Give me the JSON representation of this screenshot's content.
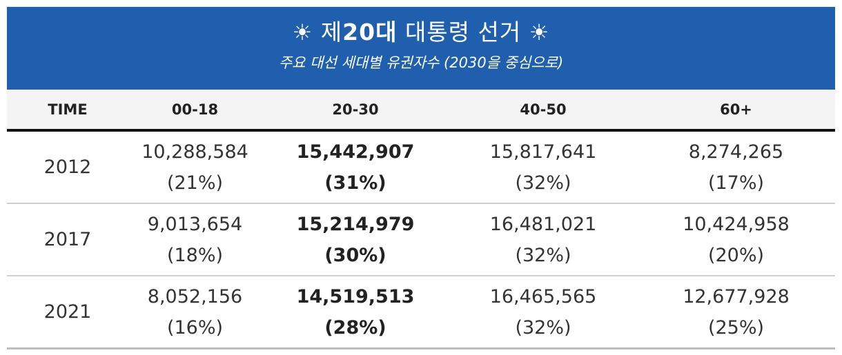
{
  "header": {
    "title_prefix": "제",
    "title_number": "20대",
    "title_suffix": "대통령 선거",
    "sun_symbol": "☀",
    "subtitle": "주요 대선 세대별 유권자수 (2030을 중심으로)",
    "background_color": "#1f5fae"
  },
  "table": {
    "columns": [
      "TIME",
      "00-18",
      "20-30",
      "40-50",
      "60+"
    ],
    "rows": [
      {
        "year": "2012",
        "c1": {
          "value": "10,288,584",
          "pct": "(21%)"
        },
        "c2": {
          "value": "15,442,907",
          "pct": "(31%)"
        },
        "c3": {
          "value": "15,817,641",
          "pct": "(32%)"
        },
        "c4": {
          "value": "8,274,265",
          "pct": "(17%)"
        }
      },
      {
        "year": "2017",
        "c1": {
          "value": "9,013,654",
          "pct": "(18%)"
        },
        "c2": {
          "value": "15,214,979",
          "pct": "(30%)"
        },
        "c3": {
          "value": "16,481,021",
          "pct": "(32%)"
        },
        "c4": {
          "value": "10,424,958",
          "pct": "(20%)"
        }
      },
      {
        "year": "2021",
        "c1": {
          "value": "8,052,156",
          "pct": "(16%)"
        },
        "c2": {
          "value": "14,519,513",
          "pct": "(28%)"
        },
        "c3": {
          "value": "16,465,565",
          "pct": "(32%)"
        },
        "c4": {
          "value": "12,677,928",
          "pct": "(25%)"
        }
      }
    ]
  }
}
